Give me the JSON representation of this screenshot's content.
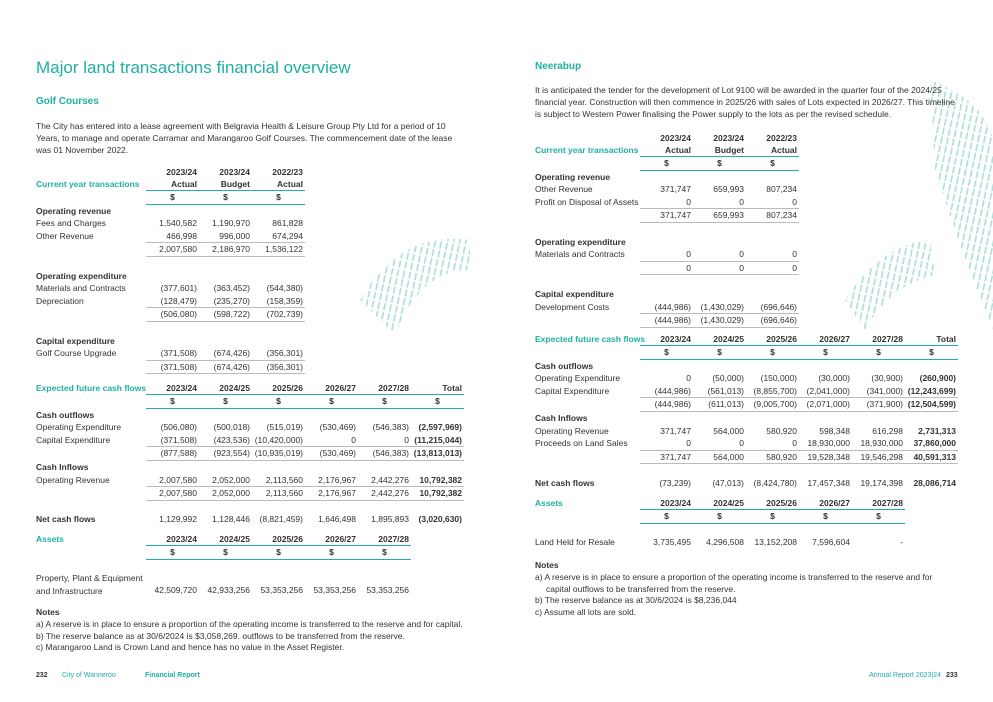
{
  "title": "Major land transactions financial overview",
  "left": {
    "heading": "Golf Courses",
    "intro": "The City has entered into a lease agreement with Belgravia Health & Leisure Group Pty Ltd for a period of 10 Years, to manage and operate Carramar and Marangaroo Golf Courses. The commencement date of the lease was 01 November 2022.",
    "tables": [
      {
        "corner": "Current year transactions",
        "columns": [
          "2023/24",
          "2023/24",
          "2022/23"
        ],
        "subheads": [
          "Actual",
          "Budget",
          "Actual"
        ],
        "units": [
          "$",
          "$",
          "$"
        ],
        "rows": [
          [
            "Operating revenue"
          ],
          [
            "Fees and Charges",
            "1,540,582",
            "1,190,970",
            "861,828"
          ],
          [
            "Other Revenue",
            "466,998",
            "996,000",
            "674,294"
          ],
          [
            null,
            "2,007,580",
            "2,186,970",
            "1,536,122"
          ],
          [
            "Operating expenditure"
          ],
          [
            "Materials and Contracts",
            "(377,601)",
            "(363,452)",
            "(544,380)"
          ],
          [
            "Depreciation",
            "(128,479)",
            "(235,270)",
            "(158,359)"
          ],
          [
            null,
            "(506,080)",
            "(598,722)",
            "(702,739)"
          ],
          [
            "Capital expenditure"
          ],
          [
            "Golf Course Upgrade",
            "(371,508)",
            "(674,426)",
            "(356,301)"
          ],
          [
            null,
            "(371,508)",
            "(674,426)",
            "(356,301)"
          ]
        ]
      },
      {
        "corner": "Expected future cash flows",
        "columns": [
          "2023/24",
          "2024/25",
          "2025/26",
          "2026/27",
          "2027/28",
          "Total"
        ],
        "units": [
          "$",
          "$",
          "$",
          "$",
          "$",
          "$"
        ],
        "rows": [
          [
            "Cash outflows"
          ],
          [
            "Operating Expenditure",
            "(506,080)",
            "(500,018)",
            "(515,019)",
            "(530,469)",
            "(546,383)",
            "(2,597,969)"
          ],
          [
            "Capital Expenditure",
            "(371,508)",
            "(423,536)",
            "(10,420,000)",
            "0",
            "0",
            "(11,215,044)"
          ],
          [
            null,
            "(877,588)",
            "(923,554)",
            "(10,935,019)",
            "(530,469)",
            "(546,383)",
            "(13,813,013)"
          ],
          [
            "Cash Inflows"
          ],
          [
            "Operating Revenue",
            "2,007,580",
            "2,052,000",
            "2,113,560",
            "2,176,967",
            "2,442,276",
            "10,792,382"
          ],
          [
            null,
            "2,007,580",
            "2,052,000",
            "2,113,560",
            "2,176,967",
            "2,442,276",
            "10,792,382"
          ],
          [
            "Net cash flows",
            "1,129,992",
            "1,128,446",
            "(8,821,459)",
            "1,646,498",
            "1,895,893",
            "(3,020,630)"
          ]
        ]
      },
      {
        "corner": "Assets",
        "columns": [
          "2023/24",
          "2024/25",
          "2025/26",
          "2026/27",
          "2027/28"
        ],
        "units": [
          "$",
          "$",
          "$",
          "$",
          "$"
        ],
        "rows": [
          [
            "Property, Plant & Equipment\nand Infrastructure",
            "42,509,720",
            "42,933,256",
            "53,353,256",
            "53,353,256",
            "53,353,256"
          ]
        ]
      }
    ],
    "notes_heading": "Notes",
    "notes": [
      "a) A reserve is in place to ensure a proportion of the operating income is transferred to the reserve and for capital.",
      "b) The reserve balance as at 30/6/2024 is $3,058,269. outflows to be transferred from the reserve.",
      "c) Marangaroo Land is Crown Land and hence has no value in the Asset Register."
    ]
  },
  "right": {
    "heading": "Neerabup",
    "intro": "It is anticipated the tender for the development of Lot 9100 will be awarded in the quarter four of the 2024/25 financial year.  Construction will then commence in 2025/26 with sales of Lots expected in 2026/27. This timeline is subject to Western Power finalising the Power supply to the lots as per the revised schedule.",
    "tables": [
      {
        "corner": "Current year transactions",
        "columns": [
          "2023/24",
          "2023/24",
          "2022/23"
        ],
        "subheads": [
          "Actual",
          "Budget",
          "Actual"
        ],
        "units": [
          "$",
          "$",
          "$"
        ],
        "rows": [
          [
            "Operating revenue"
          ],
          [
            "Other Revenue",
            "371,747",
            "659,993",
            "807,234"
          ],
          [
            "Profit on Disposal of Assets",
            "0",
            "0",
            "0"
          ],
          [
            null,
            "371,747",
            "659,993",
            "807,234"
          ],
          [
            "Operating expenditure"
          ],
          [
            "Materials and Contracts",
            "0",
            "0",
            "0"
          ],
          [
            null,
            "0",
            "0",
            "0"
          ],
          [
            "Capital expenditure"
          ],
          [
            "Development Costs",
            "(444,986)",
            "(1,430,029)",
            "(696,646)"
          ],
          [
            null,
            "(444,986)",
            "(1,430,029)",
            "(696,646)"
          ]
        ]
      },
      {
        "corner": "Expected future cash flows",
        "columns": [
          "2023/24",
          "2024/25",
          "2025/26",
          "2026/27",
          "2027/28",
          "Total"
        ],
        "units": [
          "$",
          "$",
          "$",
          "$",
          "$",
          "$"
        ],
        "rows": [
          [
            "Cash outflows"
          ],
          [
            "Operating Expenditure",
            "0",
            "(50,000)",
            "(150,000)",
            "(30,000)",
            "(30,900)",
            "(260,900)"
          ],
          [
            "Capital Expenditure",
            "(444,986)",
            "(561,013)",
            "(8,855,700)",
            "(2,041,000)",
            "(341,000)",
            "(12,243,699)"
          ],
          [
            null,
            "(444,986)",
            "(611,013)",
            "(9,005,700)",
            "(2,071,000)",
            "(371,900)",
            "(12,504,599)"
          ],
          [
            "Cash Inflows"
          ],
          [
            "Operating Revenue",
            "371,747",
            "564,000",
            "580,920",
            "598,348",
            "616,298",
            "2,731,313"
          ],
          [
            "Proceeds on Land Sales",
            "0",
            "0",
            "0",
            "18,930,000",
            "18,930,000",
            "37,860,000"
          ],
          [
            null,
            "371,747",
            "564,000",
            "580,920",
            "19,528,348",
            "19,546,298",
            "40,591,313"
          ],
          [
            "Net cash flows",
            "(73,239)",
            "(47,013)",
            "(8,424,780)",
            "17,457,348",
            "19,174,398",
            "28,086,714"
          ]
        ]
      },
      {
        "corner": "Assets",
        "columns": [
          "2023/24",
          "2024/25",
          "2025/26",
          "2026/27",
          "2027/28"
        ],
        "units": [
          "$",
          "$",
          "$",
          "$",
          "$"
        ],
        "rows": [
          [
            "Land Held for Resale",
            "3,735,495",
            "4,296,508",
            "13,152,208",
            "7,596,604",
            "-"
          ]
        ]
      }
    ],
    "notes_heading": "Notes",
    "notes": [
      "a) A reserve is in place to ensure a proportion of the operating income is transferred to the reserve and for capital outflows to be transferred from the reserve.",
      "b) The reserve balance as at 30/6/2024 is $8,236,044",
      "c) Assume all lots are sold."
    ]
  },
  "footer": {
    "left_page": "232",
    "org": "City of Wanneroo",
    "section": "Financial Report",
    "report": "Annual Report 2023|24",
    "right_page": "233"
  }
}
